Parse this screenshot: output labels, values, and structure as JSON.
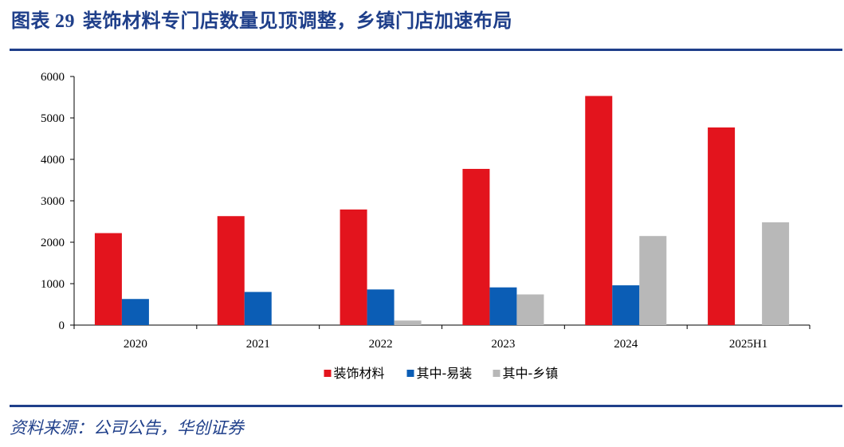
{
  "title": {
    "figure_label": "图表",
    "figure_number": "29",
    "text": "装饰材料专门店数量见顶调整，乡镇门店加速布局"
  },
  "source": "资料来源：公司公告，华创证券",
  "colors": {
    "brand": "#1f3f8a",
    "series": [
      "#e3141d",
      "#0b5db5",
      "#b8b8b8"
    ]
  },
  "chart_data": {
    "type": "bar",
    "title": "装饰材料专门店数量见顶调整，乡镇门店加速布局",
    "categories": [
      "2020",
      "2021",
      "2022",
      "2023",
      "2024",
      "2025H1"
    ],
    "series": [
      {
        "name": "装饰材料",
        "values": [
          2220,
          2630,
          2790,
          3770,
          5530,
          4770
        ]
      },
      {
        "name": "其中-易装",
        "values": [
          630,
          800,
          860,
          910,
          960,
          null
        ]
      },
      {
        "name": "其中-乡镇",
        "values": [
          null,
          null,
          110,
          740,
          2150,
          2480
        ]
      }
    ],
    "ylim": [
      0,
      6000
    ],
    "yticks": [
      0,
      1000,
      2000,
      3000,
      4000,
      5000,
      6000
    ],
    "xlabel": "",
    "ylabel": "",
    "grid": false,
    "legend": "bottom-center"
  }
}
